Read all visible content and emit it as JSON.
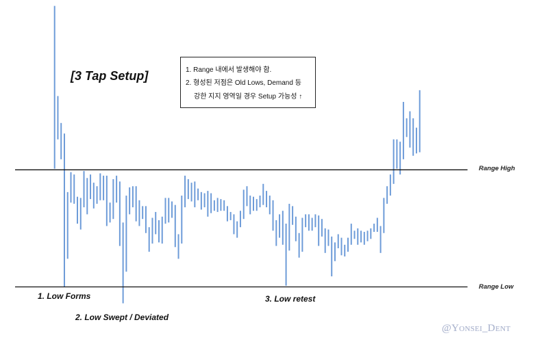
{
  "chart_data": {
    "type": "bar",
    "subtype": "range-bars (high-low)",
    "title": "[3 Tap Setup]",
    "xlabel": "",
    "ylabel": "",
    "grid": false,
    "legend": null,
    "y_scale_note": "normalized: Range Low = 0, Range High = 100",
    "bar_color": "#6d9bd8",
    "level_color": "#111111",
    "levels": [
      {
        "name": "Range High",
        "value": 100
      },
      {
        "name": "Range Low",
        "value": 0
      }
    ],
    "bars": [
      [
        240,
        101
      ],
      [
        163,
        126
      ],
      [
        140,
        109
      ],
      [
        131,
        0
      ],
      [
        81,
        24
      ],
      [
        98,
        72
      ],
      [
        96,
        71
      ],
      [
        77,
        54
      ],
      [
        76,
        49
      ],
      [
        99,
        68
      ],
      [
        93,
        62
      ],
      [
        96,
        75
      ],
      [
        89,
        67
      ],
      [
        86,
        71
      ],
      [
        97,
        74
      ],
      [
        95,
        74
      ],
      [
        95,
        52
      ],
      [
        72,
        55
      ],
      [
        92,
        58
      ],
      [
        95,
        72
      ],
      [
        90,
        35
      ],
      [
        55,
        -14
      ],
      [
        78,
        13
      ],
      [
        85,
        62
      ],
      [
        86,
        68
      ],
      [
        86,
        56
      ],
      [
        74,
        52
      ],
      [
        69,
        58
      ],
      [
        69,
        46
      ],
      [
        51,
        30
      ],
      [
        59,
        37
      ],
      [
        64,
        45
      ],
      [
        57,
        38
      ],
      [
        60,
        37
      ],
      [
        76,
        54
      ],
      [
        76,
        55
      ],
      [
        73,
        59
      ],
      [
        70,
        34
      ],
      [
        45,
        24
      ],
      [
        78,
        37
      ],
      [
        95,
        68
      ],
      [
        92,
        75
      ],
      [
        89,
        73
      ],
      [
        90,
        68
      ],
      [
        84,
        74
      ],
      [
        81,
        66
      ],
      [
        80,
        68
      ],
      [
        82,
        60
      ],
      [
        80,
        63
      ],
      [
        74,
        65
      ],
      [
        76,
        64
      ],
      [
        75,
        65
      ],
      [
        74,
        65
      ],
      [
        69,
        56
      ],
      [
        64,
        57
      ],
      [
        62,
        45
      ],
      [
        56,
        42
      ],
      [
        65,
        51
      ],
      [
        83,
        58
      ],
      [
        86,
        69
      ],
      [
        78,
        62
      ],
      [
        77,
        65
      ],
      [
        75,
        65
      ],
      [
        78,
        68
      ],
      [
        88,
        70
      ],
      [
        82,
        68
      ],
      [
        78,
        62
      ],
      [
        74,
        48
      ],
      [
        57,
        35
      ],
      [
        62,
        42
      ],
      [
        65,
        36
      ],
      [
        54,
        1
      ],
      [
        71,
        31
      ],
      [
        69,
        53
      ],
      [
        60,
        39
      ],
      [
        46,
        25
      ],
      [
        59,
        30
      ],
      [
        62,
        51
      ],
      [
        62,
        48
      ],
      [
        59,
        48
      ],
      [
        62,
        51
      ],
      [
        61,
        35
      ],
      [
        58,
        43
      ],
      [
        50,
        29
      ],
      [
        49,
        35
      ],
      [
        43,
        9
      ],
      [
        38,
        22
      ],
      [
        45,
        33
      ],
      [
        42,
        27
      ],
      [
        36,
        26
      ],
      [
        42,
        30
      ],
      [
        54,
        36
      ],
      [
        48,
        41
      ],
      [
        50,
        36
      ],
      [
        48,
        38
      ],
      [
        47,
        36
      ],
      [
        48,
        39
      ],
      [
        50,
        41
      ],
      [
        54,
        47
      ],
      [
        59,
        47
      ],
      [
        52,
        29
      ],
      [
        76,
        46
      ],
      [
        86,
        71
      ],
      [
        96,
        78
      ],
      [
        126,
        88
      ],
      [
        126,
        101
      ],
      [
        124,
        96
      ],
      [
        158,
        109
      ],
      [
        144,
        128
      ],
      [
        150,
        119
      ],
      [
        144,
        112
      ],
      [
        136,
        114
      ],
      [
        168,
        115
      ]
    ],
    "annotations": [
      {
        "text": "1. Low Forms"
      },
      {
        "text": "2. Low Swept / Deviated"
      },
      {
        "text": "3. Low retest"
      }
    ],
    "notes_box": {
      "lines": [
        "1. Range 내에서 발생해야 함.",
        "2. 형성된 저점은 Old Lows, Demand 등",
        "강한 지지 영역일 경우 Setup 가능성 ↑"
      ]
    },
    "watermark": "@Yonsei_Dent"
  }
}
